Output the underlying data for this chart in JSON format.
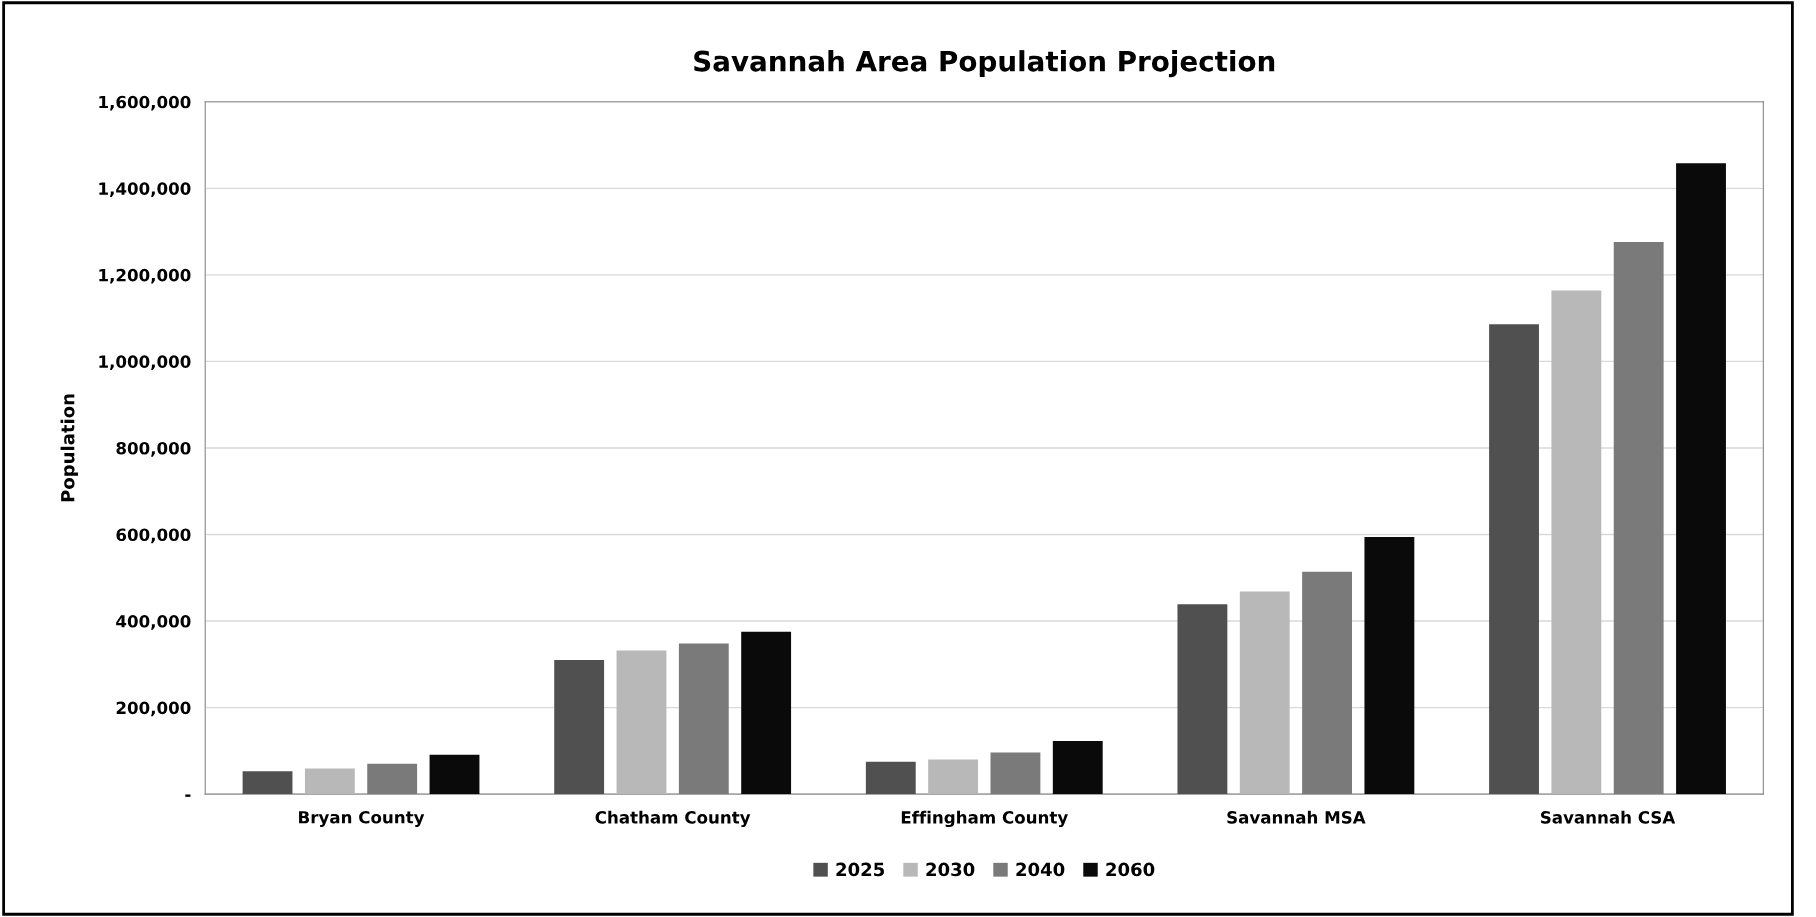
{
  "chart_data": {
    "type": "bar",
    "title": "Savannah Area Population Projection",
    "ylabel": "Population",
    "categories": [
      "Bryan County",
      "Chatham County",
      "Effingham County",
      "Savannah MSA",
      "Savannah CSA"
    ],
    "series": [
      {
        "name": "2025",
        "color": "#505050",
        "values": [
          53000,
          310000,
          75000,
          439000,
          1086000
        ]
      },
      {
        "name": "2030",
        "color": "#b8b8b8",
        "values": [
          59000,
          332000,
          80000,
          468000,
          1164000
        ]
      },
      {
        "name": "2040",
        "color": "#7a7a7a",
        "values": [
          70000,
          348000,
          96000,
          514000,
          1276000
        ]
      },
      {
        "name": "2060",
        "color": "#0a0a0a",
        "values": [
          91000,
          375000,
          123000,
          594000,
          1458000
        ]
      }
    ],
    "ylim": [
      0,
      1600000
    ],
    "yticks": [
      {
        "value": 0,
        "label": "-"
      },
      {
        "value": 200000,
        "label": "200,000"
      },
      {
        "value": 400000,
        "label": "400,000"
      },
      {
        "value": 600000,
        "label": "600,000"
      },
      {
        "value": 800000,
        "label": "800,000"
      },
      {
        "value": 1000000,
        "label": "1,000,000"
      },
      {
        "value": 1200000,
        "label": "1,200,000"
      },
      {
        "value": 1400000,
        "label": "1,400,000"
      },
      {
        "value": 1600000,
        "label": "1,600,000"
      }
    ],
    "grid": "y",
    "legend": "bottom"
  }
}
